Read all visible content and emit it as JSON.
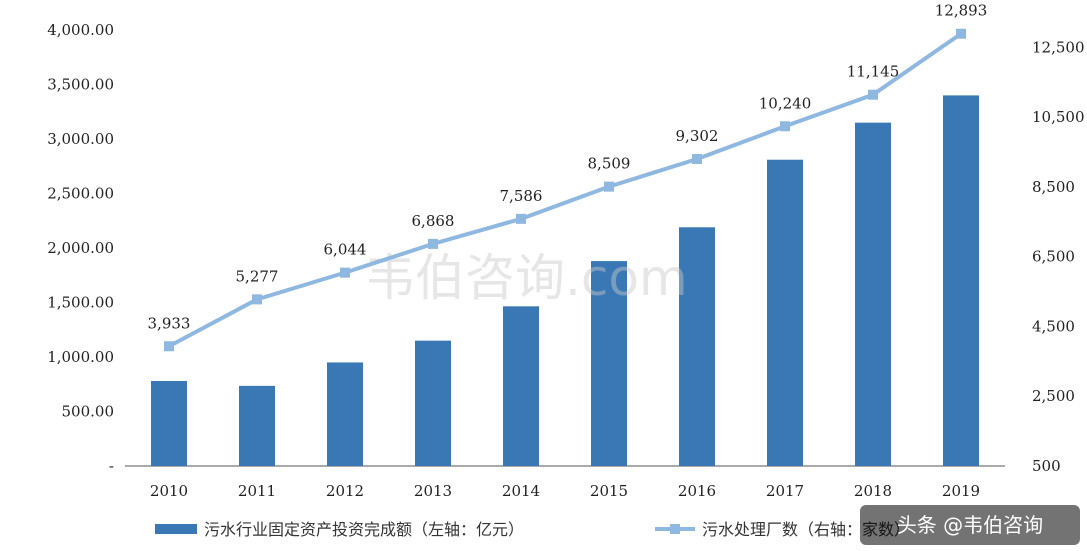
{
  "chart_data": {
    "type": "bar+line",
    "categories": [
      "2010",
      "2011",
      "2012",
      "2013",
      "2014",
      "2015",
      "2016",
      "2017",
      "2018",
      "2019"
    ],
    "series": [
      {
        "name": "污水行业固定资产投资完成额（左轴：亿元）",
        "type": "bar",
        "axis": "left",
        "values": [
          780,
          735,
          950,
          1150,
          1465,
          1880,
          2190,
          2810,
          3150,
          3400
        ]
      },
      {
        "name": "污水处理厂数（右轴：家数）",
        "type": "line",
        "axis": "right",
        "values": [
          3933,
          5277,
          6044,
          6868,
          7586,
          8509,
          9302,
          10240,
          11145,
          12893
        ],
        "labels": [
          "3,933",
          "5,277",
          "6,044",
          "6,868",
          "7,586",
          "8,509",
          "9,302",
          "10,240",
          "11,145",
          "12,893"
        ]
      }
    ],
    "left_axis": {
      "ylim": [
        0,
        4000
      ],
      "ticks": [
        {
          "v": 0,
          "label": "-"
        },
        {
          "v": 500,
          "label": "500.00"
        },
        {
          "v": 1000,
          "label": "1,000.00"
        },
        {
          "v": 1500,
          "label": "1,500.00"
        },
        {
          "v": 2000,
          "label": "2,000.00"
        },
        {
          "v": 2500,
          "label": "2,500.00"
        },
        {
          "v": 3000,
          "label": "3,000.00"
        },
        {
          "v": 3500,
          "label": "3,500.00"
        },
        {
          "v": 4000,
          "label": "4,000.00"
        }
      ]
    },
    "right_axis": {
      "ylim": [
        500,
        13000
      ],
      "ticks": [
        {
          "v": 500,
          "label": "500"
        },
        {
          "v": 2500,
          "label": "2,500"
        },
        {
          "v": 4500,
          "label": "4,500"
        },
        {
          "v": 6500,
          "label": "6,500"
        },
        {
          "v": 8500,
          "label": "8,500"
        },
        {
          "v": 10500,
          "label": "10,500"
        },
        {
          "v": 12500,
          "label": "12,500"
        }
      ]
    },
    "grid": false,
    "legend_position": "bottom",
    "colors": {
      "bar": "#3a78b5",
      "line": "#8fb8e0",
      "axis": "#555555"
    }
  },
  "watermark": "韦伯咨询.com",
  "badge": "头条 @韦伯咨询"
}
